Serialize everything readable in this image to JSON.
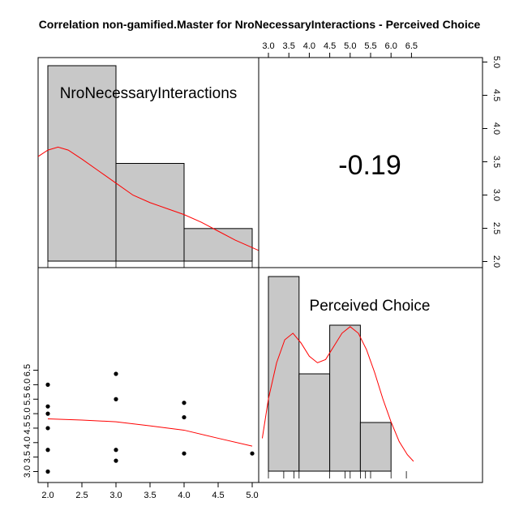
{
  "chart_data": {
    "type": "scatter-matrix",
    "title": "Correlation non-gamified.Master for NroNecessaryInteractions - Perceived Choice",
    "variables": [
      "NroNecessaryInteractions",
      "Perceived Choice"
    ],
    "correlation": "-0.19",
    "colors": {
      "density": "#ff0000",
      "bars": "#c8c8c8",
      "points": "#000000"
    },
    "histogram_x": {
      "variable": "NroNecessaryInteractions",
      "breaks": [
        2,
        3,
        4,
        5
      ],
      "counts": [
        6,
        3,
        1
      ],
      "density_curve": [
        [
          1.6,
          0.28
        ],
        [
          1.8,
          0.34
        ],
        [
          2.0,
          0.37
        ],
        [
          2.15,
          0.38
        ],
        [
          2.3,
          0.37
        ],
        [
          2.5,
          0.34
        ],
        [
          2.75,
          0.3
        ],
        [
          3.0,
          0.26
        ],
        [
          3.25,
          0.22
        ],
        [
          3.5,
          0.195
        ],
        [
          3.75,
          0.175
        ],
        [
          4.0,
          0.155
        ],
        [
          4.25,
          0.13
        ],
        [
          4.5,
          0.1
        ],
        [
          4.75,
          0.07
        ],
        [
          5.0,
          0.045
        ],
        [
          5.15,
          0.03
        ]
      ]
    },
    "histogram_y": {
      "variable": "Perceived Choice",
      "breaks": [
        3.0,
        3.75,
        4.5,
        5.25,
        6.0
      ],
      "counts": [
        4,
        2,
        3,
        1
      ],
      "rug": [
        3.0,
        3.375,
        3.625,
        3.75,
        4.5,
        4.875,
        5.0,
        5.25,
        5.375,
        5.5,
        6.0,
        6.375
      ],
      "density_curve": [
        [
          2.85,
          0.1
        ],
        [
          3.0,
          0.22
        ],
        [
          3.2,
          0.33
        ],
        [
          3.4,
          0.4
        ],
        [
          3.6,
          0.42
        ],
        [
          3.8,
          0.39
        ],
        [
          4.0,
          0.35
        ],
        [
          4.2,
          0.33
        ],
        [
          4.4,
          0.34
        ],
        [
          4.6,
          0.38
        ],
        [
          4.8,
          0.42
        ],
        [
          5.0,
          0.44
        ],
        [
          5.2,
          0.42
        ],
        [
          5.4,
          0.37
        ],
        [
          5.6,
          0.3
        ],
        [
          5.8,
          0.22
        ],
        [
          6.0,
          0.15
        ],
        [
          6.2,
          0.09
        ],
        [
          6.4,
          0.05
        ],
        [
          6.55,
          0.03
        ]
      ]
    },
    "scatter": {
      "xlabel": "",
      "ylabel": "",
      "points": [
        {
          "x": 2,
          "y": 6.0
        },
        {
          "x": 2,
          "y": 5.25
        },
        {
          "x": 2,
          "y": 5.0
        },
        {
          "x": 2,
          "y": 4.5
        },
        {
          "x": 2,
          "y": 3.75
        },
        {
          "x": 2,
          "y": 3.0
        },
        {
          "x": 3,
          "y": 6.375
        },
        {
          "x": 3,
          "y": 5.5
        },
        {
          "x": 3,
          "y": 3.75
        },
        {
          "x": 3,
          "y": 3.375
        },
        {
          "x": 4,
          "y": 5.375
        },
        {
          "x": 4,
          "y": 4.875
        },
        {
          "x": 4,
          "y": 3.625
        },
        {
          "x": 5,
          "y": 3.625
        }
      ],
      "smooth_line": [
        [
          2,
          4.82
        ],
        [
          2.5,
          4.78
        ],
        [
          3,
          4.72
        ],
        [
          3.5,
          4.58
        ],
        [
          4,
          4.43
        ],
        [
          4.5,
          4.15
        ],
        [
          5,
          3.88
        ]
      ],
      "xlim": [
        1.97,
        5.15
      ],
      "ylim": [
        2.95,
        6.5
      ]
    },
    "axes": {
      "bottom_ticks": [
        "2.0",
        "2.5",
        "3.0",
        "3.5",
        "4.0",
        "4.5",
        "5.0"
      ],
      "bottom_tick_values": [
        2.0,
        2.5,
        3.0,
        3.5,
        4.0,
        4.5,
        5.0
      ],
      "left_ticks": [
        "3.0",
        "3.5",
        "4.0",
        "4.5",
        "5.0",
        "5.5",
        "6.0",
        "6.5"
      ],
      "left_tick_values": [
        3.0,
        3.5,
        4.0,
        4.5,
        5.0,
        5.5,
        6.0,
        6.5
      ],
      "top_ticks": [
        "3.0",
        "3.5",
        "4.0",
        "4.5",
        "5.0",
        "5.5",
        "6.0",
        "6.5"
      ],
      "top_tick_values": [
        3.0,
        3.5,
        4.0,
        4.5,
        5.0,
        5.5,
        6.0,
        6.5
      ],
      "right_ticks": [
        "2.0",
        "2.5",
        "3.0",
        "3.5",
        "4.0",
        "4.5",
        "5.0"
      ],
      "right_tick_values": [
        2.0,
        2.5,
        3.0,
        3.5,
        4.0,
        4.5,
        5.0
      ]
    },
    "grid": false,
    "legend": "none"
  }
}
